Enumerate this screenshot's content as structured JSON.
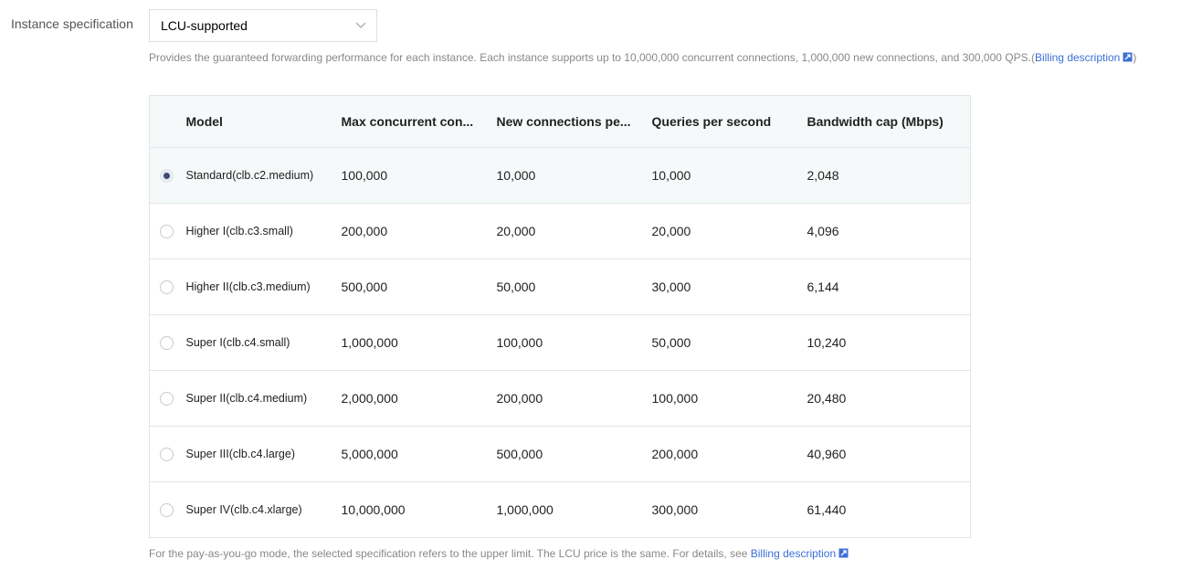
{
  "label": "Instance specification",
  "select": {
    "value": "LCU-supported"
  },
  "description": {
    "text": "Provides the guaranteed forwarding performance for each instance. Each instance supports up to 10,000,000 concurrent connections, 1,000,000 new connections, and 300,000 QPS.(",
    "link": "Billing description",
    "close": ")"
  },
  "table": {
    "headers": [
      "Model",
      "Max concurrent con...",
      "New connections pe...",
      "Queries per second",
      "Bandwidth cap (Mbps)"
    ],
    "rows": [
      {
        "selected": true,
        "cells": [
          "Standard(clb.c2.medium)",
          "100,000",
          "10,000",
          "10,000",
          "2,048"
        ]
      },
      {
        "selected": false,
        "cells": [
          "Higher I(clb.c3.small)",
          "200,000",
          "20,000",
          "20,000",
          "4,096"
        ]
      },
      {
        "selected": false,
        "cells": [
          "Higher II(clb.c3.medium)",
          "500,000",
          "50,000",
          "30,000",
          "6,144"
        ]
      },
      {
        "selected": false,
        "cells": [
          "Super I(clb.c4.small)",
          "1,000,000",
          "100,000",
          "50,000",
          "10,240"
        ]
      },
      {
        "selected": false,
        "cells": [
          "Super II(clb.c4.medium)",
          "2,000,000",
          "200,000",
          "100,000",
          "20,480"
        ]
      },
      {
        "selected": false,
        "cells": [
          "Super III(clb.c4.large)",
          "5,000,000",
          "500,000",
          "200,000",
          "40,960"
        ]
      },
      {
        "selected": false,
        "cells": [
          "Super IV(clb.c4.xlarge)",
          "10,000,000",
          "1,000,000",
          "300,000",
          "61,440"
        ]
      }
    ]
  },
  "footer": {
    "text": "For the pay-as-you-go mode, the selected specification refers to the upper limit. The LCU price is the same. For details, see ",
    "link": "Billing description"
  },
  "colors": {
    "link": "#3b6fd8",
    "radio_selected": "#3e4b78",
    "header_bg": "#f6f9fa"
  }
}
